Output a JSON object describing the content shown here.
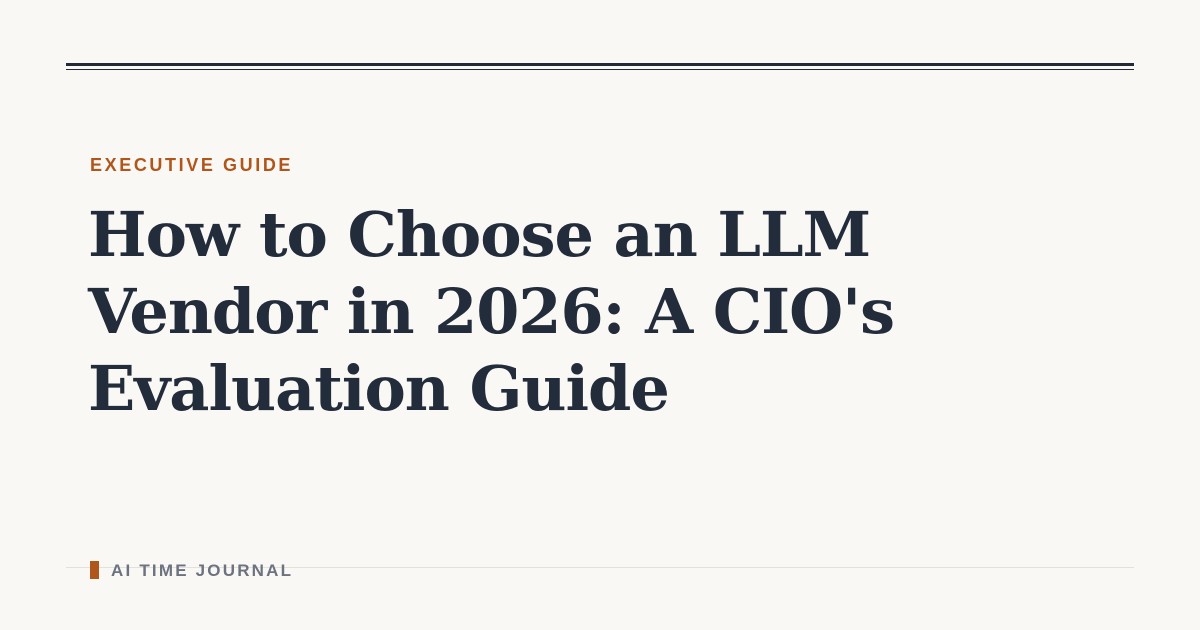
{
  "kicker": "EXECUTIVE GUIDE",
  "headline": "How to Choose an LLM Vendor in 2026: A CIO's Evaluation Guide",
  "brand": "AI TIME JOURNAL",
  "colors": {
    "background": "#f9f8f4",
    "accent": "#b0561a",
    "headline": "#222c3a",
    "brand_text": "#6d7280"
  }
}
